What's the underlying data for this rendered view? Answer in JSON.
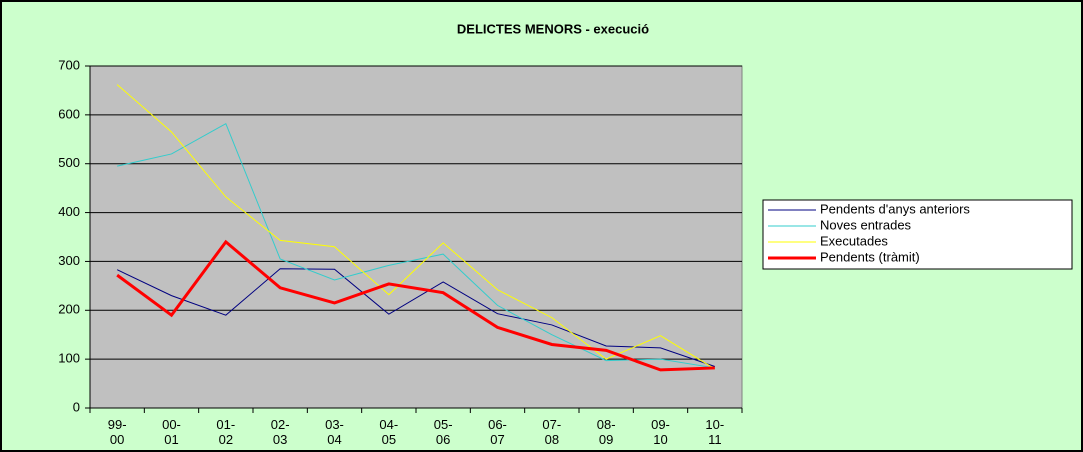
{
  "chart_data": {
    "type": "line",
    "title": "DELICTES MENORS - execució",
    "categories": [
      "99-\n00",
      "00-\n01",
      "01-\n02",
      "02-\n03",
      "03-\n04",
      "04-\n05",
      "05-\n06",
      "06-\n07",
      "07-\n08",
      "08-\n09",
      "09-\n10",
      "10-\n11"
    ],
    "series": [
      {
        "name": "Pendents d'anys anteriors",
        "color": "#000080",
        "width": 1,
        "values": [
          283,
          230,
          190,
          285,
          284,
          192,
          258,
          193,
          170,
          127,
          123,
          85
        ]
      },
      {
        "name": "Noves entrades",
        "color": "#33cccc",
        "width": 1,
        "values": [
          495,
          520,
          582,
          305,
          262,
          292,
          315,
          210,
          150,
          97,
          100,
          82
        ]
      },
      {
        "name": "Executades",
        "color": "#ffff00",
        "width": 1,
        "values": [
          662,
          565,
          432,
          343,
          330,
          232,
          338,
          242,
          185,
          100,
          148,
          80
        ]
      },
      {
        "name": "Pendents (tràmit)",
        "color": "#ff0000",
        "width": 3,
        "values": [
          272,
          190,
          340,
          246,
          215,
          254,
          236,
          165,
          130,
          118,
          78,
          82
        ]
      }
    ],
    "ylim": [
      0,
      700
    ],
    "yticks": [
      0,
      100,
      200,
      300,
      400,
      500,
      600,
      700
    ],
    "grid": true,
    "legend": "right"
  }
}
